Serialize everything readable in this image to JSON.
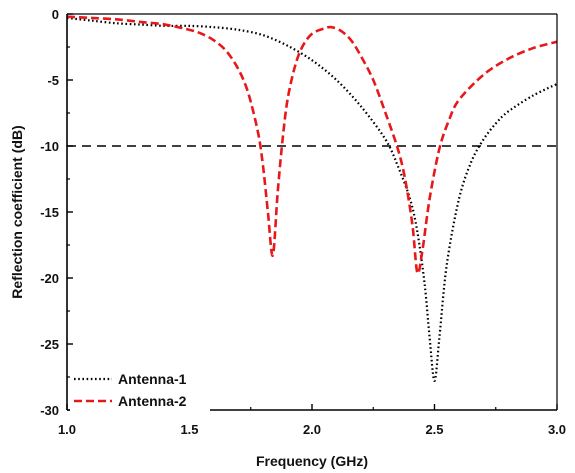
{
  "chart_data": {
    "type": "line",
    "xlabel": "Frequency (GHz)",
    "ylabel": "Reflection coefficient (dB)",
    "xlim": [
      1.0,
      3.0
    ],
    "ylim": [
      -30,
      0
    ],
    "xticks": [
      "1.0",
      "1.5",
      "2.0",
      "2.5",
      "3.0"
    ],
    "yticks": [
      "0",
      "-5",
      "-10",
      "-15",
      "-20",
      "-25",
      "-30"
    ],
    "xtick_values": [
      1.0,
      1.5,
      2.0,
      2.5,
      3.0
    ],
    "ytick_values": [
      0,
      -5,
      -10,
      -15,
      -20,
      -25,
      -30
    ],
    "grid": false,
    "legend_position": "bottom-left",
    "reference_line": {
      "y": -10,
      "style": "dashed",
      "color": "#000000"
    },
    "series": [
      {
        "name": "Antenna-1",
        "color": "#000000",
        "dash": "dotted",
        "x": [
          1.0,
          1.1,
          1.2,
          1.3,
          1.4,
          1.5,
          1.6,
          1.7,
          1.8,
          1.9,
          2.0,
          2.1,
          2.2,
          2.3,
          2.35,
          2.4,
          2.43,
          2.46,
          2.48,
          2.5,
          2.52,
          2.55,
          2.6,
          2.65,
          2.7,
          2.75,
          2.8,
          2.9,
          3.0
        ],
        "y": [
          -0.3,
          -0.5,
          -0.7,
          -0.8,
          -0.9,
          -0.9,
          -1.0,
          -1.2,
          -1.6,
          -2.4,
          -3.5,
          -5.0,
          -7.0,
          -9.5,
          -11.5,
          -14.0,
          -16.5,
          -20.5,
          -24.5,
          -27.8,
          -24.5,
          -19.0,
          -14.0,
          -11.2,
          -9.5,
          -8.3,
          -7.4,
          -6.2,
          -5.3
        ]
      },
      {
        "name": "Antenna-2",
        "color": "#e8181a",
        "dash": "dashed",
        "x": [
          1.0,
          1.1,
          1.2,
          1.3,
          1.4,
          1.5,
          1.55,
          1.6,
          1.65,
          1.7,
          1.74,
          1.78,
          1.8,
          1.82,
          1.84,
          1.86,
          1.88,
          1.9,
          1.93,
          1.96,
          2.0,
          2.05,
          2.08,
          2.12,
          2.16,
          2.2,
          2.25,
          2.3,
          2.35,
          2.38,
          2.41,
          2.43,
          2.45,
          2.48,
          2.52,
          2.56,
          2.6,
          2.7,
          2.8,
          2.9,
          3.0
        ],
        "y": [
          -0.2,
          -0.3,
          -0.4,
          -0.6,
          -0.8,
          -1.2,
          -1.5,
          -2.0,
          -2.8,
          -4.2,
          -6.0,
          -9.0,
          -11.5,
          -15.0,
          -18.3,
          -13.5,
          -9.5,
          -6.5,
          -4.0,
          -2.5,
          -1.5,
          -1.1,
          -1.0,
          -1.3,
          -2.0,
          -3.2,
          -5.0,
          -7.5,
          -10.2,
          -12.5,
          -16.0,
          -19.6,
          -18.0,
          -14.0,
          -10.2,
          -8.0,
          -6.5,
          -4.6,
          -3.4,
          -2.6,
          -2.1
        ]
      }
    ]
  }
}
